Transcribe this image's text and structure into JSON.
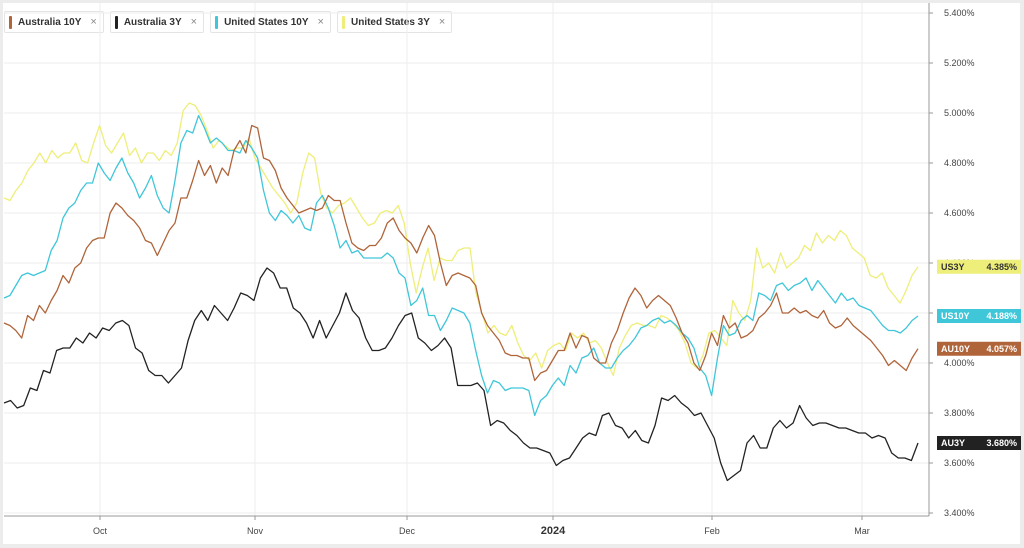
{
  "legend": [
    {
      "label": "Australia 10Y",
      "close": "×",
      "color": "#b0643a"
    },
    {
      "label": "Australia 3Y",
      "close": "×",
      "color": "#222222"
    },
    {
      "label": "United States 10Y",
      "close": "×",
      "color": "#3fc6d9"
    },
    {
      "label": "United States 3Y",
      "close": "×",
      "color": "#eeee7a"
    }
  ],
  "chart_data": {
    "type": "line",
    "y_ticks": [
      "3.400%",
      "3.600%",
      "3.800%",
      "4.000%",
      "4.200%",
      "4.400%",
      "4.600%",
      "4.800%",
      "5.000%",
      "5.200%",
      "5.400%"
    ],
    "ylim": [
      3.4,
      5.4
    ],
    "x_ticks": [
      {
        "label": "Oct",
        "bold": false
      },
      {
        "label": "Nov",
        "bold": false
      },
      {
        "label": "Dec",
        "bold": false
      },
      {
        "label": "2024",
        "bold": true
      },
      {
        "label": "Feb",
        "bold": false
      },
      {
        "label": "Mar",
        "bold": false
      }
    ],
    "grid": true,
    "series": [
      {
        "name": "United States 3Y",
        "flag": "US3Y",
        "last": "4.385%",
        "color": "#eeee7a",
        "flag_text": "#333333",
        "values": [
          4.66,
          4.65,
          4.69,
          4.72,
          4.77,
          4.8,
          4.84,
          4.8,
          4.85,
          4.82,
          4.84,
          4.84,
          4.88,
          4.81,
          4.8,
          4.88,
          4.95,
          4.87,
          4.84,
          4.88,
          4.92,
          4.83,
          4.86,
          4.8,
          4.84,
          4.84,
          4.81,
          4.85,
          4.83,
          4.88,
          5.01,
          5.04,
          5.03,
          4.99,
          4.93,
          4.86,
          4.89,
          4.87,
          4.85,
          4.86,
          4.86,
          4.9,
          4.82,
          4.78,
          4.74,
          4.7,
          4.67,
          4.64,
          4.6,
          4.64,
          4.76,
          4.84,
          4.82,
          4.68,
          4.62,
          4.6,
          4.63,
          4.64,
          4.66,
          4.62,
          4.58,
          4.55,
          4.56,
          4.6,
          4.61,
          4.6,
          4.63,
          4.56,
          4.4,
          4.28,
          4.38,
          4.46,
          4.33,
          4.42,
          4.41,
          4.41,
          4.45,
          4.46,
          4.46,
          4.28,
          4.2,
          4.12,
          4.15,
          4.12,
          4.11,
          4.15,
          4.08,
          4.03,
          4.01,
          4.04,
          3.98,
          4.05,
          4.07,
          4.08,
          4.05,
          4.12,
          4.1,
          4.12,
          4.08,
          4.09,
          4.06,
          4.0,
          3.95,
          4.06,
          4.11,
          4.15,
          4.16,
          4.15,
          4.15,
          4.14,
          4.19,
          4.18,
          4.16,
          4.13,
          4.08,
          4.0,
          3.98,
          4.03,
          4.12,
          4.13,
          4.1,
          4.07,
          4.25,
          4.2,
          4.17,
          4.25,
          4.46,
          4.38,
          4.4,
          4.36,
          4.44,
          4.38,
          4.4,
          4.42,
          4.47,
          4.45,
          4.52,
          4.48,
          4.51,
          4.49,
          4.53,
          4.51,
          4.46,
          4.44,
          4.42,
          4.35,
          4.34,
          4.36,
          4.3,
          4.27,
          4.24,
          4.29,
          4.35,
          4.385
        ]
      },
      {
        "name": "United States 10Y",
        "flag": "US10Y",
        "last": "4.188%",
        "color": "#3fc6d9",
        "flag_text": "#ffffff",
        "values": [
          4.26,
          4.27,
          4.31,
          4.35,
          4.36,
          4.35,
          4.36,
          4.37,
          4.45,
          4.49,
          4.58,
          4.62,
          4.64,
          4.69,
          4.72,
          4.72,
          4.8,
          4.76,
          4.73,
          4.78,
          4.82,
          4.76,
          4.72,
          4.66,
          4.7,
          4.75,
          4.67,
          4.62,
          4.6,
          4.73,
          4.88,
          4.93,
          4.92,
          4.99,
          4.94,
          4.88,
          4.9,
          4.88,
          4.85,
          4.85,
          4.84,
          4.89,
          4.86,
          4.82,
          4.69,
          4.6,
          4.57,
          4.61,
          4.59,
          4.56,
          4.59,
          4.54,
          4.53,
          4.64,
          4.67,
          4.62,
          4.55,
          4.46,
          4.49,
          4.44,
          4.45,
          4.42,
          4.42,
          4.42,
          4.42,
          4.44,
          4.42,
          4.36,
          4.34,
          4.23,
          4.25,
          4.3,
          4.19,
          4.19,
          4.13,
          4.17,
          4.22,
          4.21,
          4.2,
          4.16,
          4.05,
          3.95,
          3.88,
          3.93,
          3.92,
          3.89,
          3.9,
          3.9,
          3.9,
          3.89,
          3.79,
          3.85,
          3.87,
          3.91,
          3.94,
          3.91,
          3.99,
          3.96,
          4.02,
          4.03,
          4.06,
          4.0,
          3.98,
          3.98,
          4.02,
          4.05,
          4.07,
          4.1,
          4.14,
          4.15,
          4.17,
          4.18,
          4.16,
          4.17,
          4.15,
          4.12,
          4.1,
          4.06,
          3.98,
          3.95,
          3.87,
          4.02,
          4.15,
          4.11,
          4.12,
          4.17,
          4.19,
          4.17,
          4.28,
          4.27,
          4.25,
          4.31,
          4.32,
          4.29,
          4.31,
          4.32,
          4.34,
          4.29,
          4.33,
          4.3,
          4.27,
          4.24,
          4.28,
          4.25,
          4.26,
          4.23,
          4.22,
          4.21,
          4.18,
          4.15,
          4.13,
          4.13,
          4.12,
          4.14,
          4.17,
          4.188
        ]
      },
      {
        "name": "Australia 10Y",
        "flag": "AU10Y",
        "last": "4.057%",
        "color": "#b0643a",
        "flag_text": "#ffffff",
        "values": [
          4.16,
          4.15,
          4.13,
          4.1,
          4.19,
          4.17,
          4.23,
          4.2,
          4.25,
          4.29,
          4.35,
          4.32,
          4.38,
          4.4,
          4.46,
          4.49,
          4.5,
          4.5,
          4.6,
          4.64,
          4.62,
          4.59,
          4.57,
          4.54,
          4.49,
          4.48,
          4.43,
          4.48,
          4.53,
          4.56,
          4.66,
          4.66,
          4.73,
          4.81,
          4.75,
          4.79,
          4.72,
          4.78,
          4.75,
          4.85,
          4.89,
          4.84,
          4.95,
          4.94,
          4.82,
          4.81,
          4.77,
          4.7,
          4.66,
          4.63,
          4.6,
          4.61,
          4.62,
          4.61,
          4.62,
          4.67,
          4.65,
          4.65,
          4.56,
          4.48,
          4.46,
          4.45,
          4.47,
          4.47,
          4.5,
          4.56,
          4.58,
          4.53,
          4.5,
          4.48,
          4.44,
          4.5,
          4.55,
          4.51,
          4.4,
          4.31,
          4.35,
          4.36,
          4.35,
          4.34,
          4.31,
          4.2,
          4.15,
          4.12,
          4.09,
          4.04,
          4.03,
          4.03,
          4.02,
          4.02,
          3.93,
          3.96,
          3.97,
          4.01,
          4.05,
          4.05,
          4.12,
          4.06,
          4.11,
          4.1,
          4.02,
          4.0,
          4.0,
          4.08,
          4.13,
          4.2,
          4.26,
          4.3,
          4.27,
          4.22,
          4.25,
          4.27,
          4.25,
          4.23,
          4.18,
          4.12,
          4.08,
          4.0,
          3.97,
          4.03,
          4.12,
          4.07,
          4.19,
          4.14,
          4.16,
          4.1,
          4.11,
          4.13,
          4.18,
          4.2,
          4.23,
          4.28,
          4.2,
          4.2,
          4.22,
          4.2,
          4.21,
          4.19,
          4.18,
          4.21,
          4.16,
          4.14,
          4.15,
          4.18,
          4.15,
          4.13,
          4.11,
          4.09,
          4.06,
          4.03,
          3.99,
          4.01,
          3.99,
          3.97,
          4.02,
          4.057
        ]
      },
      {
        "name": "Australia 3Y",
        "flag": "AU3Y",
        "last": "3.680%",
        "color": "#222222",
        "flag_text": "#ffffff",
        "values": [
          3.84,
          3.85,
          3.82,
          3.83,
          3.9,
          3.89,
          3.97,
          3.96,
          4.05,
          4.06,
          4.06,
          4.1,
          4.08,
          4.12,
          4.1,
          4.14,
          4.13,
          4.16,
          4.17,
          4.15,
          4.06,
          4.04,
          3.97,
          3.95,
          3.95,
          3.92,
          3.95,
          3.98,
          4.09,
          4.17,
          4.21,
          4.17,
          4.23,
          4.2,
          4.17,
          4.22,
          4.28,
          4.27,
          4.25,
          4.34,
          4.38,
          4.36,
          4.3,
          4.3,
          4.22,
          4.2,
          4.16,
          4.1,
          4.17,
          4.1,
          4.15,
          4.2,
          4.28,
          4.21,
          4.18,
          4.1,
          4.05,
          4.05,
          4.06,
          4.1,
          4.15,
          4.19,
          4.2,
          4.1,
          4.08,
          4.05,
          4.07,
          4.1,
          4.06,
          3.91,
          3.91,
          3.91,
          3.92,
          3.89,
          3.75,
          3.77,
          3.76,
          3.73,
          3.71,
          3.68,
          3.66,
          3.66,
          3.65,
          3.64,
          3.59,
          3.61,
          3.62,
          3.66,
          3.7,
          3.72,
          3.71,
          3.79,
          3.8,
          3.75,
          3.74,
          3.7,
          3.73,
          3.69,
          3.68,
          3.75,
          3.86,
          3.85,
          3.87,
          3.84,
          3.82,
          3.79,
          3.8,
          3.75,
          3.7,
          3.6,
          3.53,
          3.55,
          3.57,
          3.68,
          3.71,
          3.66,
          3.66,
          3.74,
          3.77,
          3.74,
          3.76,
          3.83,
          3.78,
          3.75,
          3.76,
          3.76,
          3.75,
          3.74,
          3.74,
          3.73,
          3.72,
          3.72,
          3.7,
          3.71,
          3.7,
          3.64,
          3.62,
          3.62,
          3.61,
          3.68
        ]
      }
    ]
  }
}
